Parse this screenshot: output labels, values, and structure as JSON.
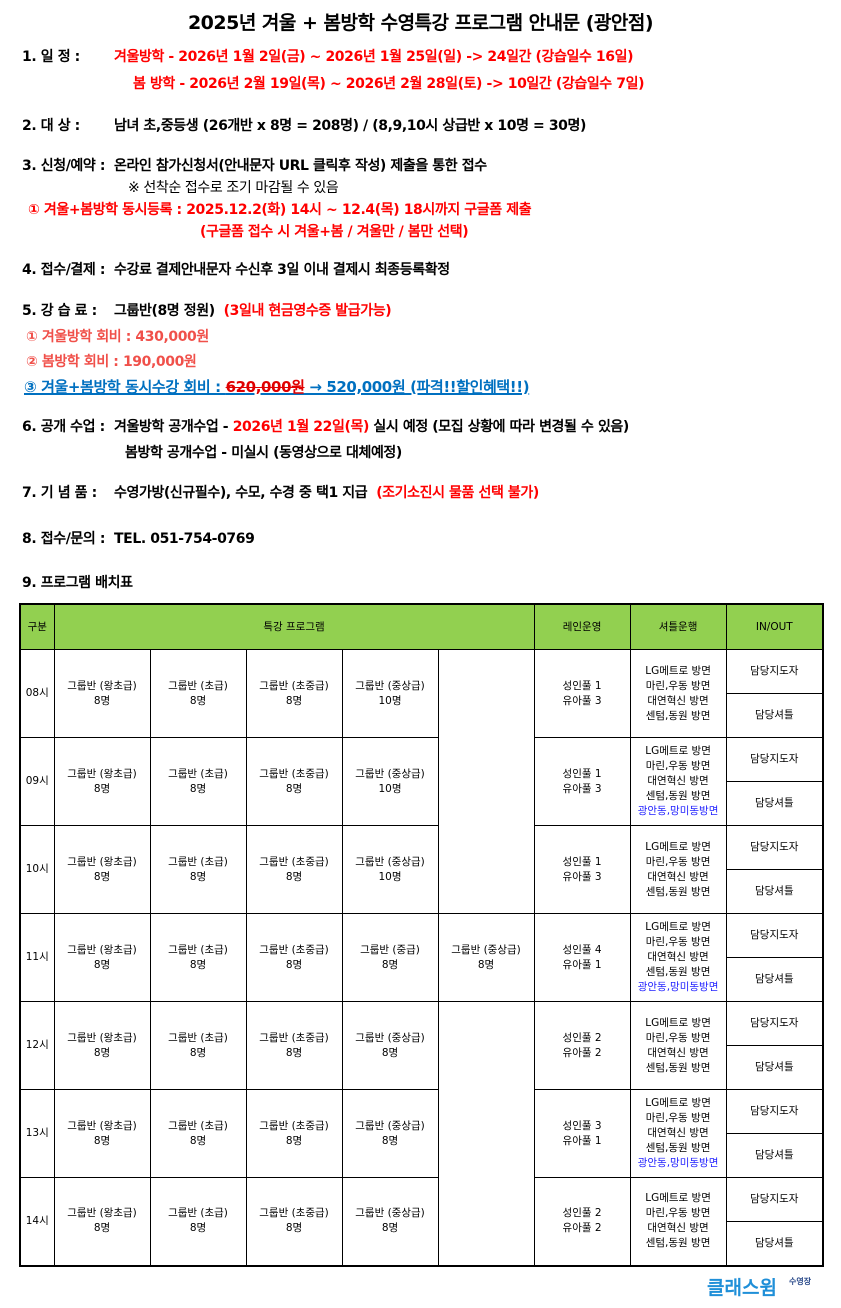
{
  "title": "2025년 겨울 + 봄방학 수영특강 프로그램 안내문 (광안점)",
  "s1": {
    "label": "1. 일       정  :",
    "winter": "겨울방학 - 2026년 1월 2일(금)  ~  2026년 1월 25일(일)  ->  24일간 (강습일수 16일)",
    "spring": "봄 방학 - 2026년 2월 19일(목)  ~  2026년 2월 28일(토)  -> 10일간 (강습일수 7일)"
  },
  "s2": {
    "label": "2. 대       상  :",
    "text": "남녀 초,중등생 (26개반 x 8명 = 208명) / (8,9,10시 상급반 x 10명 = 30명)"
  },
  "s3": {
    "label": "3. 신청/예약  :",
    "text": "온라인 참가신청서(안내문자 URL 클릭후 작성) 제출을 통한 접수",
    "note": "※ 선착순 접수로 조기 마감될 수 있음",
    "red1": "① 겨울+봄방학 동시등록 : 2025.12.2(화) 14시 ~ 12.4(목) 18시까지 구글폼 제출",
    "red2": "(구글폼 접수 시 겨울+봄 / 겨울만 / 봄만 선택)"
  },
  "s4": {
    "label": "4. 접수/결제  :",
    "text": "수강료 결제안내문자 수신후 3일 이내 결제시 최종등록확정"
  },
  "s5": {
    "label": "5. 강  습  료  :",
    "text": "그룹반(8명 정원)",
    "red": "(3일내 현금영수증 발급가능)",
    "fee1": "① 겨울방학 회비 : 430,000원",
    "fee2": "② 봄방학 회비 : 190,000원",
    "fee3_prefix": "③ 겨울+봄방학 동시수강 회비 : ",
    "fee3_old": "620,000원",
    "fee3_new": " → 520,000원 (파격!!할인혜택!!)"
  },
  "s6": {
    "label": "6. 공개 수업  :",
    "pre": "겨울방학 공개수업 - ",
    "date": "2026년 1월 22일(목)",
    "post": " 실시 예정 (모집 상황에 따라 변경될 수 있음)",
    "spring": "봄방학 공개수업 - 미실시 (동영상으로 대체예정)"
  },
  "s7": {
    "label": "7. 기  념  품  :",
    "text": "수영가방(신규필수), 수모, 수경 중 택1 지급",
    "red": "(조기소진시 물품 선택 불가)"
  },
  "s8": {
    "label": "8. 접수/문의  :",
    "text": "TEL.  051-754-0769"
  },
  "s9": {
    "label": "9. 프로그램 배치표"
  },
  "table": {
    "headers": [
      "구분",
      "특강 프로그램",
      "레인운영",
      "셔틀운행",
      "IN/OUT"
    ],
    "inout": [
      "담당지도자",
      "담당셔틀"
    ],
    "shuttle_base": [
      "LG메트로 방면",
      "마린,우동 방면",
      "대연혁신 방면",
      "센텀,동원 방면"
    ],
    "shuttle_extra": "광안동,망미동방면",
    "rows": [
      {
        "time": "08시",
        "classes": [
          [
            "그룹반 (왕초급)",
            "8명"
          ],
          [
            "그룹반 (초급)",
            "8명"
          ],
          [
            "그룹반 (초중급)",
            "8명"
          ],
          [
            "그룹반 (중상급)",
            "10명"
          ]
        ],
        "lanes": [
          "성인풀 1",
          "유아풀 3"
        ],
        "extra": false
      },
      {
        "time": "09시",
        "classes": [
          [
            "그룹반 (왕초급)",
            "8명"
          ],
          [
            "그룹반 (초급)",
            "8명"
          ],
          [
            "그룹반 (초중급)",
            "8명"
          ],
          [
            "그룹반 (중상급)",
            "10명"
          ]
        ],
        "lanes": [
          "성인풀 1",
          "유아풀 3"
        ],
        "extra": true
      },
      {
        "time": "10시",
        "classes": [
          [
            "그룹반 (왕초급)",
            "8명"
          ],
          [
            "그룹반 (초급)",
            "8명"
          ],
          [
            "그룹반 (초중급)",
            "8명"
          ],
          [
            "그룹반 (중상급)",
            "10명"
          ]
        ],
        "lanes": [
          "성인풀 1",
          "유아풀 3"
        ],
        "extra": false
      },
      {
        "time": "11시",
        "classes": [
          [
            "그룹반 (왕초급)",
            "8명"
          ],
          [
            "그룹반 (초급)",
            "8명"
          ],
          [
            "그룹반 (초중급)",
            "8명"
          ],
          [
            "그룹반 (중급)",
            "8명"
          ],
          [
            "그룹반 (중상급)",
            "8명"
          ]
        ],
        "lanes": [
          "성인풀 4",
          "유아풀 1"
        ],
        "extra": true
      },
      {
        "time": "12시",
        "classes": [
          [
            "그룹반 (왕초급)",
            "8명"
          ],
          [
            "그룹반 (초급)",
            "8명"
          ],
          [
            "그룹반 (초중급)",
            "8명"
          ],
          [
            "그룹반 (중상급)",
            "8명"
          ]
        ],
        "lanes": [
          "성인풀 2",
          "유아풀 2"
        ],
        "extra": false
      },
      {
        "time": "13시",
        "classes": [
          [
            "그룹반 (왕초급)",
            "8명"
          ],
          [
            "그룹반 (초급)",
            "8명"
          ],
          [
            "그룹반 (초중급)",
            "8명"
          ],
          [
            "그룹반 (중상급)",
            "8명"
          ]
        ],
        "lanes": [
          "성인풀 3",
          "유아풀 1"
        ],
        "extra": true
      },
      {
        "time": "14시",
        "classes": [
          [
            "그룹반 (왕초급)",
            "8명"
          ],
          [
            "그룹반 (초급)",
            "8명"
          ],
          [
            "그룹반 (초중급)",
            "8명"
          ],
          [
            "그룹반 (중상급)",
            "8명"
          ]
        ],
        "lanes": [
          "성인풀 2",
          "유아풀 2"
        ],
        "extra": false
      }
    ]
  },
  "logo": {
    "text": "클래스윔",
    "sub": "수영장",
    "colors": [
      "#1f8fd8",
      "#2a4a8a"
    ]
  }
}
